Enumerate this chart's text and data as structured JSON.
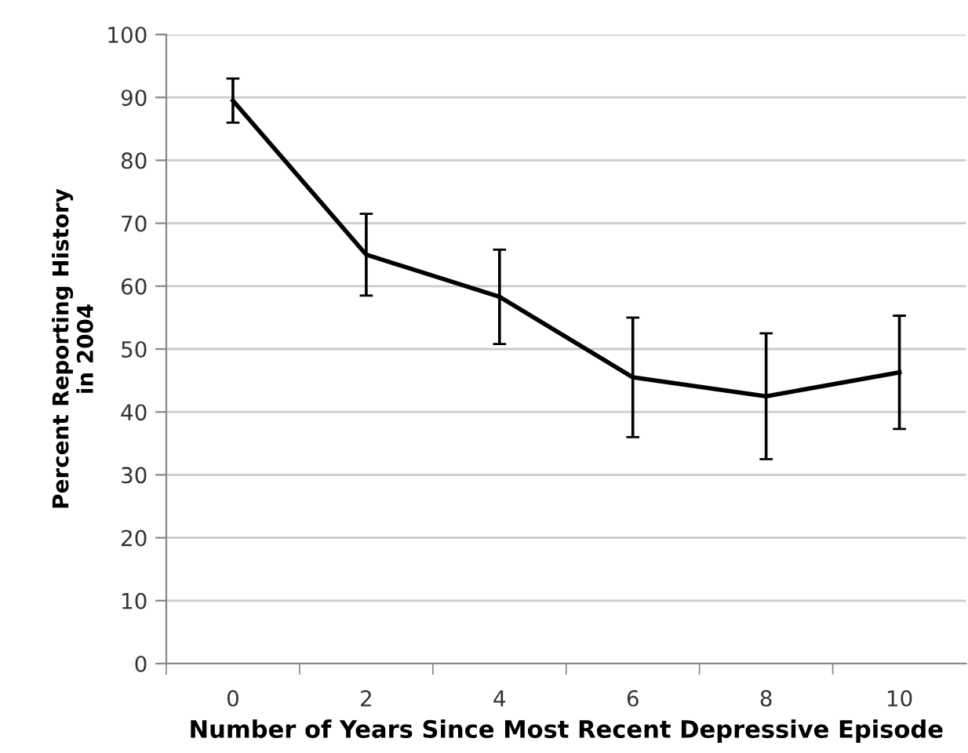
{
  "chart_data": {
    "type": "line",
    "xlabel": "Number of Years Since Most Recent Depressive Episode",
    "ylabel": "Percent Reporting History\nin 2004",
    "categories": [
      "0",
      "2",
      "4",
      "6",
      "8",
      "10"
    ],
    "series": [
      {
        "color": "#000000",
        "values": [
          89.5,
          65,
          58.3,
          45.5,
          42.5,
          46.3
        ],
        "errors": [
          3.5,
          6.5,
          7.5,
          9.5,
          10,
          9
        ]
      }
    ],
    "ylim": [
      0,
      100
    ],
    "yticks": [
      0,
      10,
      20,
      30,
      40,
      50,
      60,
      70,
      80,
      90,
      100
    ],
    "grid": "y",
    "marker": "none",
    "line_style": "solid",
    "legend": false
  }
}
